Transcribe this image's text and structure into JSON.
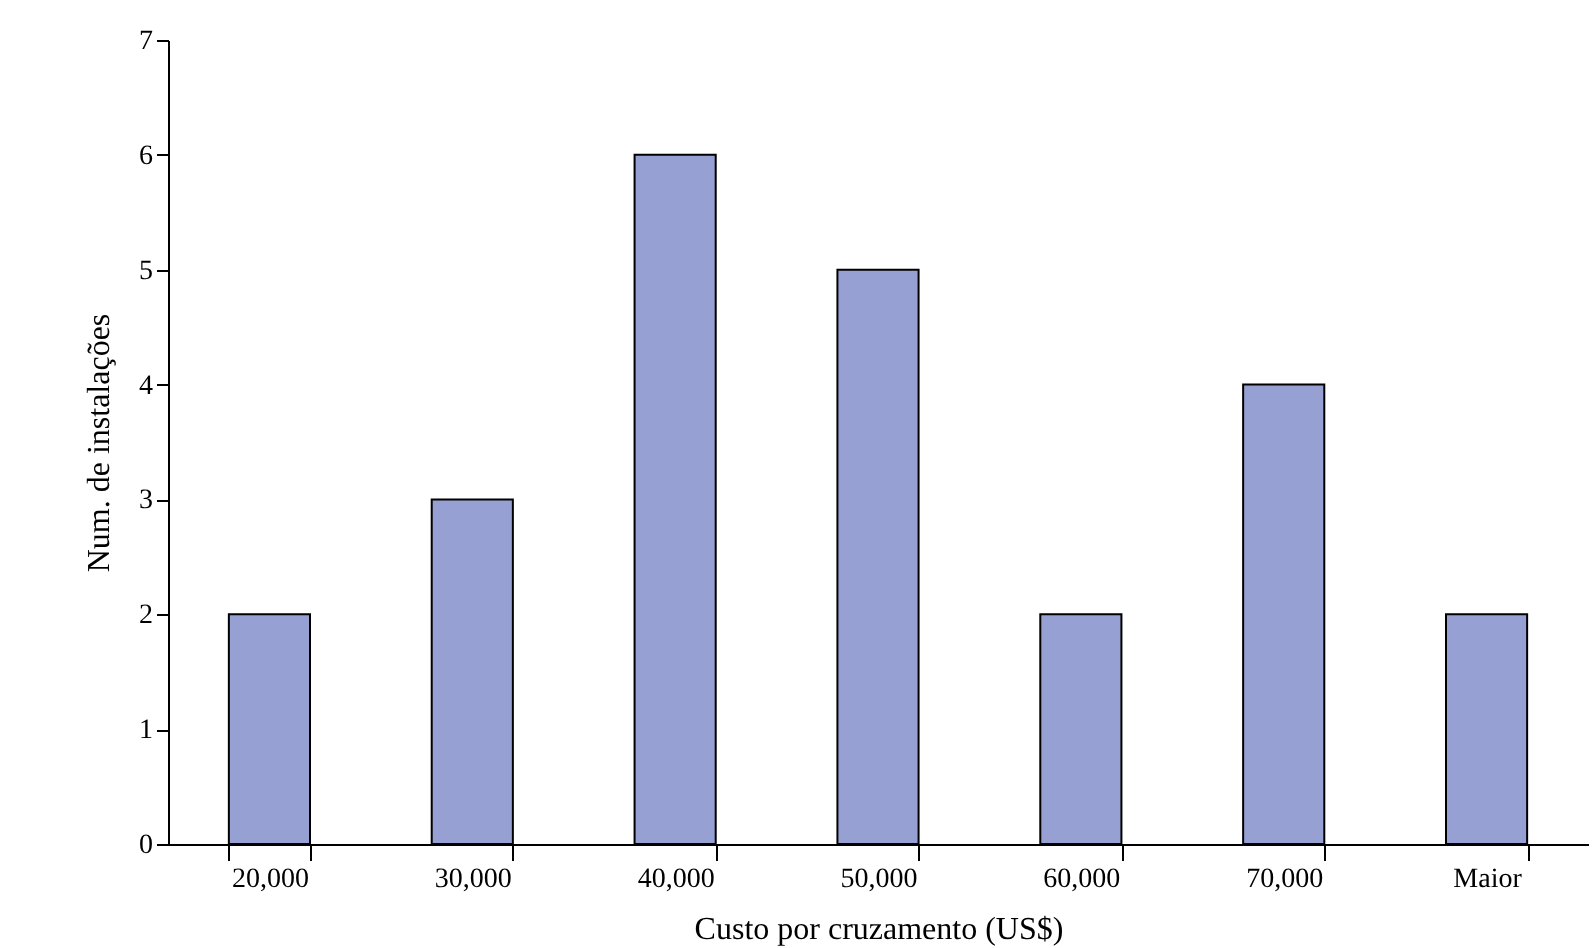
{
  "chart_data": {
    "type": "bar",
    "xlabel": "Custo por cruzamento (US$)",
    "ylabel": "Num. de instalações",
    "categories": [
      "20,000",
      "30,000",
      "40,000",
      "50,000",
      "60,000",
      "70,000",
      "Maior"
    ],
    "values": [
      2,
      3,
      6,
      5,
      2,
      4,
      2
    ],
    "color": "#96a0d2",
    "ylim": [
      0,
      7
    ],
    "yticks": [
      0,
      1,
      2,
      3,
      4,
      5,
      6,
      7
    ],
    "grid": false
  }
}
